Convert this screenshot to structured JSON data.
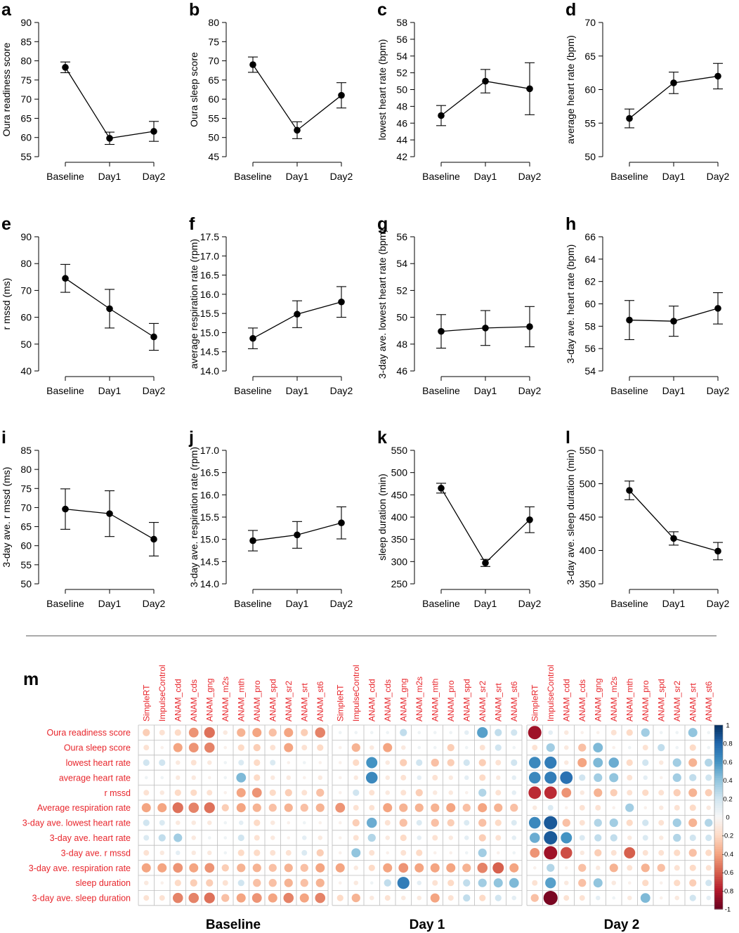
{
  "colors": {
    "line": "#000000",
    "label_red": "#e8262c",
    "grid": "#bdbdbd",
    "neg": "#c0392b",
    "pos": "#2166ac"
  },
  "chart_data": [
    {
      "panel": "a",
      "type": "line",
      "title": "",
      "ylabel": "Oura readiness score",
      "categories": [
        "Baseline",
        "Day1",
        "Day2"
      ],
      "values": [
        78.3,
        59.8,
        61.6
      ],
      "err": [
        1.4,
        1.6,
        2.6
      ],
      "ylim": [
        55,
        90
      ],
      "yticks": [
        55,
        60,
        65,
        70,
        75,
        80,
        85,
        90
      ]
    },
    {
      "panel": "b",
      "type": "line",
      "title": "",
      "ylabel": "Oura sleep score",
      "categories": [
        "Baseline",
        "Day1",
        "Day2"
      ],
      "values": [
        69,
        51.9,
        61
      ],
      "err": [
        2,
        2.2,
        3.3
      ],
      "ylim": [
        45,
        80
      ],
      "yticks": [
        45,
        50,
        55,
        60,
        65,
        70,
        75,
        80
      ]
    },
    {
      "panel": "c",
      "type": "line",
      "title": "",
      "ylabel": "lowest heart rate (bpm)",
      "categories": [
        "Baseline",
        "Day1",
        "Day2"
      ],
      "values": [
        46.9,
        51,
        50.1
      ],
      "err": [
        1.2,
        1.4,
        3.1
      ],
      "ylim": [
        42,
        58
      ],
      "yticks": [
        42,
        44,
        46,
        48,
        50,
        52,
        54,
        56,
        58
      ]
    },
    {
      "panel": "d",
      "type": "line",
      "title": "",
      "ylabel": "average heart rate (bpm)",
      "categories": [
        "Baseline",
        "Day1",
        "Day2"
      ],
      "values": [
        55.7,
        61,
        62
      ],
      "err": [
        1.4,
        1.6,
        1.9
      ],
      "ylim": [
        50,
        70
      ],
      "yticks": [
        50,
        55,
        60,
        65,
        70
      ]
    },
    {
      "panel": "e",
      "type": "line",
      "title": "",
      "ylabel": "r mssd (ms)",
      "categories": [
        "Baseline",
        "Day1",
        "Day2"
      ],
      "values": [
        74.5,
        63.2,
        52.7
      ],
      "err": [
        5.2,
        7.2,
        5
      ],
      "ylim": [
        40,
        90
      ],
      "yticks": [
        40,
        50,
        60,
        70,
        80,
        90
      ]
    },
    {
      "panel": "f",
      "type": "line",
      "title": "",
      "ylabel": "average respiration rate (rpm)",
      "categories": [
        "Baseline",
        "Day1",
        "Day2"
      ],
      "values": [
        14.85,
        15.48,
        15.8
      ],
      "err": [
        0.27,
        0.35,
        0.4
      ],
      "ylim": [
        14,
        17.5
      ],
      "yticks": [
        14.0,
        14.5,
        15.0,
        15.5,
        16.0,
        16.5,
        17.0,
        17.5
      ]
    },
    {
      "panel": "g",
      "type": "line",
      "title": "",
      "ylabel": "3-day ave. lowest heart rate (bpm)",
      "categories": [
        "Baseline",
        "Day1",
        "Day2"
      ],
      "values": [
        48.95,
        49.2,
        49.3
      ],
      "err": [
        1.25,
        1.3,
        1.5
      ],
      "ylim": [
        46,
        56
      ],
      "yticks": [
        46,
        48,
        50,
        52,
        54,
        56
      ]
    },
    {
      "panel": "h",
      "type": "line",
      "title": "",
      "ylabel": "3-day ave. heart rate (bpm)",
      "categories": [
        "Baseline",
        "Day1",
        "Day2"
      ],
      "values": [
        58.55,
        58.45,
        59.6
      ],
      "err": [
        1.75,
        1.35,
        1.4
      ],
      "ylim": [
        54,
        66
      ],
      "yticks": [
        54,
        56,
        58,
        60,
        62,
        64,
        66
      ]
    },
    {
      "panel": "i",
      "type": "line",
      "title": "",
      "ylabel": "3-day ave. r mssd (ms)",
      "categories": [
        "Baseline",
        "Day1",
        "Day2"
      ],
      "values": [
        69.6,
        68.4,
        61.7
      ],
      "err": [
        5.3,
        6,
        4.4
      ],
      "ylim": [
        50,
        85
      ],
      "yticks": [
        50,
        55,
        60,
        65,
        70,
        75,
        80,
        85
      ]
    },
    {
      "panel": "j",
      "type": "line",
      "title": "",
      "ylabel": "3-day ave. respiration rate (rpm)",
      "categories": [
        "Baseline",
        "Day1",
        "Day2"
      ],
      "values": [
        14.97,
        15.1,
        15.37
      ],
      "err": [
        0.23,
        0.3,
        0.36
      ],
      "ylim": [
        14,
        17
      ],
      "yticks": [
        14.0,
        14.5,
        15.0,
        15.5,
        16.0,
        16.5,
        17.0
      ]
    },
    {
      "panel": "k",
      "type": "line",
      "title": "",
      "ylabel": "sleep duration (min)",
      "categories": [
        "Baseline",
        "Day1",
        "Day2"
      ],
      "values": [
        465,
        297,
        394
      ],
      "err": [
        11,
        8,
        29
      ],
      "ylim": [
        250,
        550
      ],
      "yticks": [
        250,
        300,
        350,
        400,
        450,
        500,
        550
      ]
    },
    {
      "panel": "l",
      "type": "line",
      "title": "",
      "ylabel": "3-day ave. sleep duration (min)",
      "categories": [
        "Baseline",
        "Day1",
        "Day2"
      ],
      "values": [
        490,
        418,
        399
      ],
      "err": [
        14,
        10,
        13
      ],
      "ylim": [
        350,
        550
      ],
      "yticks": [
        350,
        400,
        450,
        500,
        550
      ]
    },
    {
      "panel": "m",
      "type": "heatmap",
      "title": "",
      "rows": [
        "Oura readiness score",
        "Oura sleep score",
        "lowest heart rate",
        "average heart rate",
        "r mssd",
        "Average respiration rate",
        "3-day ave. lowest heart rate",
        "3-day ave. heart rate",
        "3-day ave. r mssd",
        "3-day ave. respiration rate",
        "sleep duration",
        "3-day ave. sleep duration"
      ],
      "columns": [
        "SimpleRT",
        "ImpulseControl",
        "ANAM_cdd",
        "ANAM_cds",
        "ANAM_gng",
        "ANAM_m2s",
        "ANAM_mth",
        "ANAM_pro",
        "ANAM_spd",
        "ANAM_sr2",
        "ANAM_srt",
        "ANAM_st6"
      ],
      "groups": [
        {
          "name": "Baseline",
          "matrix": [
            [
              -0.25,
              -0.15,
              -0.2,
              -0.45,
              -0.55,
              -0.1,
              -0.35,
              -0.4,
              -0.3,
              -0.4,
              -0.25,
              -0.5
            ],
            [
              -0.15,
              -0.05,
              -0.4,
              -0.45,
              -0.5,
              -0.05,
              -0.2,
              -0.25,
              -0.15,
              -0.4,
              -0.15,
              -0.2
            ],
            [
              0.2,
              0.2,
              -0.1,
              -0.15,
              -0.1,
              0.05,
              0.15,
              -0.2,
              0.15,
              -0.05,
              0.05,
              -0.05
            ],
            [
              0.05,
              0.05,
              -0.1,
              -0.1,
              -0.05,
              0.05,
              0.45,
              -0.2,
              -0.1,
              -0.1,
              -0.05,
              -0.1
            ],
            [
              -0.15,
              -0.1,
              -0.2,
              -0.2,
              -0.15,
              -0.05,
              -0.4,
              -0.45,
              -0.2,
              -0.25,
              -0.15,
              -0.3
            ],
            [
              -0.4,
              -0.4,
              -0.55,
              -0.5,
              -0.55,
              -0.25,
              -0.4,
              -0.35,
              -0.3,
              -0.35,
              -0.3,
              -0.35
            ],
            [
              0.2,
              0.15,
              -0.1,
              -0.1,
              -0.1,
              0.05,
              0.1,
              -0.2,
              -0.1,
              -0.05,
              0.05,
              -0.05
            ],
            [
              0.15,
              0.25,
              0.35,
              -0.1,
              0.05,
              0.05,
              0.2,
              -0.15,
              -0.1,
              -0.05,
              0.1,
              -0.1
            ],
            [
              -0.15,
              -0.1,
              0.1,
              -0.1,
              -0.1,
              0.05,
              -0.2,
              -0.2,
              -0.15,
              -0.15,
              0.15,
              -0.25
            ],
            [
              -0.4,
              -0.4,
              -0.45,
              -0.4,
              -0.45,
              -0.25,
              -0.35,
              -0.35,
              -0.3,
              -0.35,
              -0.3,
              -0.4
            ],
            [
              -0.1,
              -0.05,
              -0.2,
              -0.25,
              -0.25,
              -0.15,
              0.2,
              -0.3,
              -0.3,
              -0.35,
              -0.3,
              -0.35
            ],
            [
              -0.15,
              -0.15,
              -0.5,
              -0.5,
              -0.55,
              -0.3,
              -0.4,
              -0.45,
              -0.4,
              -0.5,
              -0.4,
              -0.5
            ]
          ]
        },
        {
          "name": "Day 1",
          "matrix": [
            [
              0.05,
              0.05,
              0.05,
              0.05,
              0.25,
              0.05,
              0.05,
              0.05,
              0.1,
              0.55,
              0.25,
              0.2
            ],
            [
              -0.05,
              -0.35,
              -0.1,
              -0.4,
              -0.1,
              0.05,
              0.05,
              -0.25,
              0.05,
              -0.15,
              0.2,
              0.05
            ],
            [
              -0.05,
              -0.2,
              0.6,
              -0.1,
              -0.25,
              0.2,
              -0.3,
              -0.25,
              0.2,
              -0.25,
              -0.15,
              0.2
            ],
            [
              -0.05,
              -0.1,
              0.65,
              -0.1,
              -0.15,
              0.1,
              -0.15,
              -0.1,
              0.1,
              -0.2,
              -0.1,
              0.1
            ],
            [
              -0.05,
              0.2,
              -0.15,
              -0.1,
              -0.15,
              -0.25,
              -0.1,
              -0.1,
              -0.05,
              0.3,
              -0.15,
              0.1
            ],
            [
              -0.45,
              -0.15,
              -0.15,
              -0.4,
              -0.35,
              -0.35,
              -0.35,
              -0.4,
              -0.3,
              -0.4,
              -0.35,
              -0.3
            ],
            [
              -0.05,
              -0.25,
              0.5,
              -0.15,
              -0.3,
              0.15,
              -0.3,
              -0.25,
              0.15,
              -0.3,
              -0.2,
              0.15
            ],
            [
              -0.05,
              -0.15,
              0.3,
              -0.1,
              -0.2,
              0.1,
              -0.15,
              -0.1,
              0.1,
              -0.25,
              -0.15,
              0.1
            ],
            [
              -0.05,
              0.4,
              -0.15,
              -0.05,
              -0.15,
              -0.2,
              -0.05,
              -0.05,
              0.05,
              0.35,
              -0.05,
              0.05
            ],
            [
              -0.4,
              -0.1,
              -0.2,
              -0.4,
              -0.45,
              -0.4,
              -0.4,
              -0.4,
              -0.35,
              -0.5,
              -0.6,
              -0.4
            ],
            [
              -0.05,
              -0.1,
              0.05,
              0.25,
              0.7,
              0.1,
              -0.15,
              -0.2,
              0.25,
              0.35,
              0.4,
              0.45
            ],
            [
              -0.2,
              -0.35,
              -0.1,
              -0.15,
              -0.1,
              -0.1,
              -0.4,
              -0.15,
              0.25,
              -0.2,
              0.2,
              0.1
            ]
          ]
        },
        {
          "name": "Day 2",
          "matrix": [
            [
              -0.85,
              0.1,
              -0.1,
              -0.05,
              -0.05,
              -0.15,
              -0.2,
              0.35,
              0.05,
              0.05,
              0.4,
              0.05
            ],
            [
              -0.15,
              0.35,
              -0.1,
              -0.3,
              0.45,
              -0.05,
              0.05,
              -0.15,
              0.25,
              0.05,
              -0.2,
              0.05
            ],
            [
              0.65,
              0.7,
              -0.1,
              -0.4,
              0.45,
              0.5,
              -0.2,
              0.2,
              -0.1,
              0.35,
              -0.35,
              0.3
            ],
            [
              0.65,
              0.7,
              0.75,
              0.2,
              0.35,
              0.4,
              -0.15,
              0.1,
              -0.05,
              0.35,
              0.25,
              0.2
            ],
            [
              -0.75,
              -0.75,
              -0.45,
              -0.1,
              -0.35,
              -0.25,
              -0.15,
              -0.2,
              -0.15,
              -0.25,
              -0.35,
              -0.25
            ],
            [
              -0.1,
              0.15,
              -0.05,
              -0.15,
              -0.15,
              -0.05,
              0.35,
              -0.05,
              -0.1,
              -0.15,
              -0.2,
              -0.1
            ],
            [
              0.65,
              0.85,
              -0.3,
              -0.15,
              0.3,
              0.35,
              -0.2,
              0.2,
              -0.15,
              0.35,
              -0.35,
              0.3
            ],
            [
              0.5,
              0.85,
              0.6,
              0.15,
              0.25,
              0.25,
              -0.1,
              0.15,
              -0.1,
              0.3,
              0.2,
              0.2
            ],
            [
              -0.45,
              -0.85,
              -0.65,
              -0.1,
              -0.25,
              -0.15,
              -0.6,
              -0.15,
              -0.15,
              -0.2,
              -0.3,
              -0.2
            ],
            [
              -0.05,
              0.3,
              -0.05,
              -0.3,
              -0.1,
              -0.35,
              -0.15,
              -0.35,
              -0.3,
              -0.15,
              -0.2,
              -0.15
            ],
            [
              -0.15,
              0.55,
              -0.1,
              -0.3,
              0.4,
              -0.1,
              -0.05,
              -0.2,
              -0.05,
              -0.2,
              -0.25,
              0.2
            ],
            [
              -0.3,
              -0.95,
              -0.15,
              -0.15,
              0.1,
              0.05,
              -0.1,
              0.45,
              -0.05,
              -0.1,
              0.2,
              0.1
            ]
          ]
        }
      ],
      "colorbar": {
        "ticks": [
          "1",
          "0.8",
          "0.6",
          "0.4",
          "0.2",
          "0",
          "-0.2",
          "-0.4",
          "-0.6",
          "-0.8",
          "-1"
        ],
        "range": [
          -1,
          1
        ]
      }
    }
  ]
}
